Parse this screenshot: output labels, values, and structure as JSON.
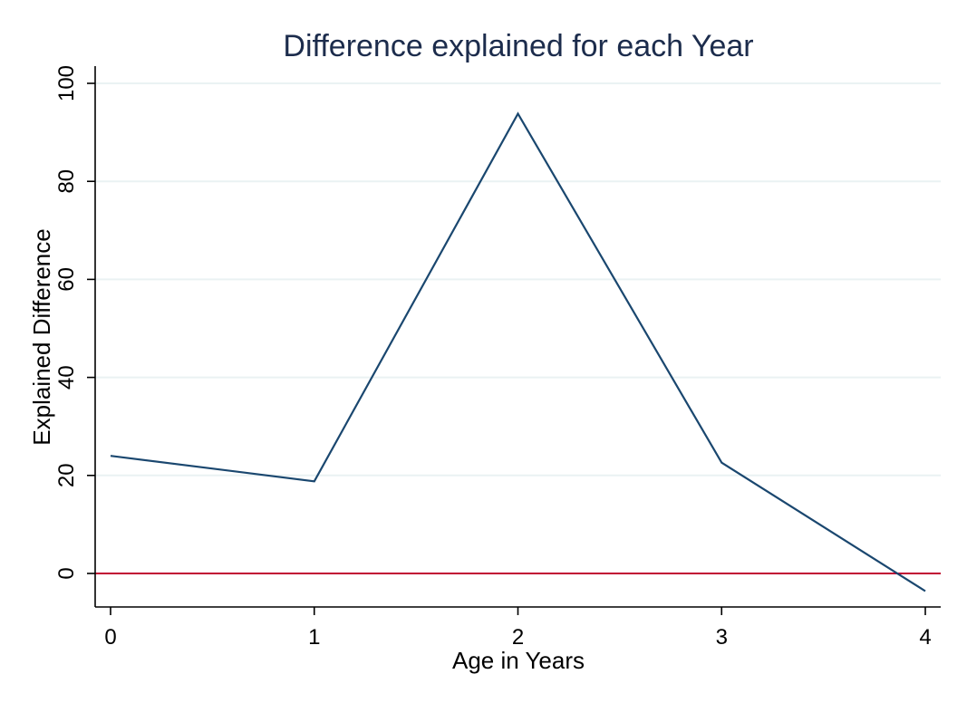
{
  "chart_data": {
    "type": "line",
    "title": "Difference explained for each Year",
    "xlabel": "Age in Years",
    "ylabel": "Explained Difference",
    "x": [
      0,
      1,
      2,
      3,
      4
    ],
    "series": [
      {
        "values": [
          24,
          18.8,
          93.8,
          22.6,
          -3.6
        ],
        "color": "#1a476f"
      }
    ],
    "xticks": [
      "0",
      "1",
      "2",
      "3",
      "4"
    ],
    "yticks": [
      "0",
      "20",
      "40",
      "60",
      "80",
      "100"
    ],
    "xlim": [
      0,
      4
    ],
    "ylim": [
      -6.9,
      100
    ],
    "reference_line": {
      "y": 0,
      "color": "#c10534"
    },
    "grid": true,
    "grid_color": "#eaf2f3",
    "legend": "none"
  }
}
